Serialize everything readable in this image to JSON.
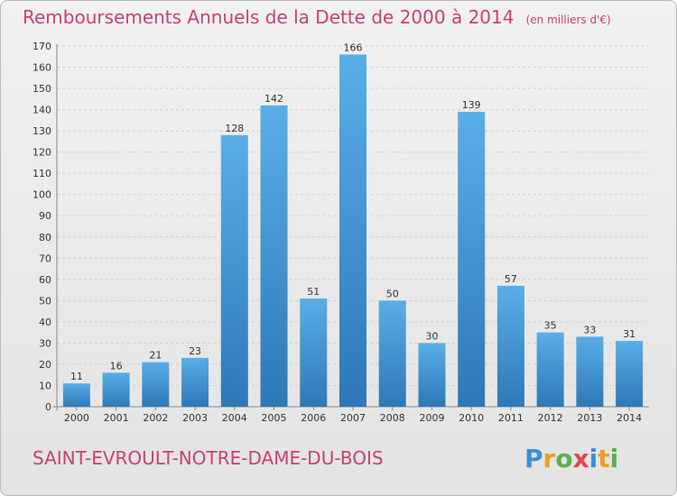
{
  "header": {
    "title": "Remboursements Annuels de la Dette de 2000 à 2014",
    "unit": "(en milliers d'€)"
  },
  "footer": {
    "commune": "SAINT-EVROULT-NOTRE-DAME-DU-BOIS",
    "logo_text": "Proxiti"
  },
  "colors": {
    "title": "#c8416c",
    "bar_top": "#5aaee6",
    "bar_bottom": "#2e78b8"
  },
  "chart_data": {
    "type": "bar",
    "title": "Remboursements Annuels de la Dette de 2000 à 2014",
    "subtitle": "(en milliers d'€)",
    "categories": [
      "2000",
      "2001",
      "2002",
      "2003",
      "2004",
      "2005",
      "2006",
      "2007",
      "2008",
      "2009",
      "2010",
      "2011",
      "2012",
      "2013",
      "2014"
    ],
    "values": [
      11,
      16,
      21,
      23,
      128,
      142,
      51,
      166,
      50,
      30,
      139,
      57,
      35,
      33,
      31
    ],
    "ylim": [
      0,
      170
    ],
    "yticks": [
      0,
      10,
      20,
      30,
      40,
      50,
      60,
      70,
      80,
      90,
      100,
      110,
      120,
      130,
      140,
      150,
      160,
      170
    ],
    "grid": true,
    "data_labels": true
  }
}
